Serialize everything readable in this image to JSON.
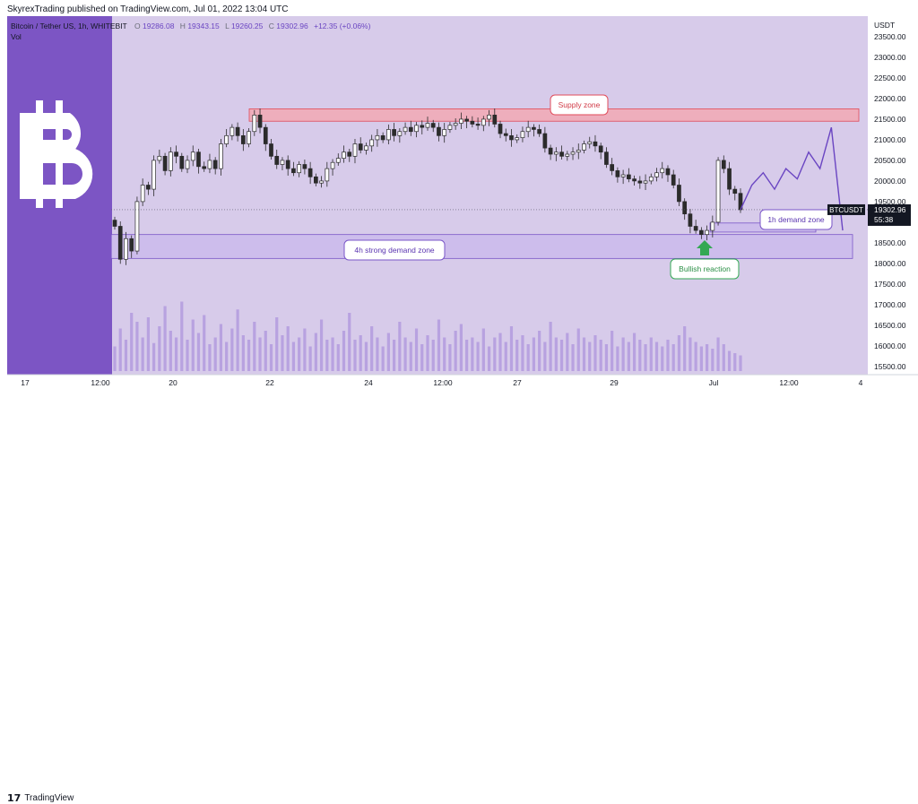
{
  "header": {
    "published_text": "SkyrexTrading published on TradingView.com, Jul 01, 2022 13:04 UTC"
  },
  "legend": {
    "symbol_line": "Bitcoin / Tether US, 1h, WHITEBIT",
    "open_label": "O",
    "open": "19286.08",
    "high_label": "H",
    "high": "19343.15",
    "low_label": "L",
    "low": "19260.25",
    "close_label": "C",
    "close": "19302.96",
    "change": "+12.35 (+0.06%)",
    "volume_label": "Vol"
  },
  "price_axis": {
    "currency": "USDT",
    "last_symbol": "BTCUSDT",
    "last_price": "19302.96",
    "countdown": "55:38"
  },
  "annotations": {
    "supply_zone": "Supply zone",
    "demand_4h": "4h strong demand zone",
    "demand_1h": "1h demand zone",
    "bullish_reaction": "Bullish reaction"
  },
  "footer": {
    "brand": "TradingView",
    "brand_mark": "17"
  },
  "colors": {
    "panel": "#d7cbea",
    "logo_panel": "#7c55c4",
    "candle": "#2b2b2b",
    "volume": "#b8a2e0",
    "supply_fill": "#f2a9b4",
    "supply_border": "#e04b5a",
    "demand_fill": "#c9b8ec",
    "demand_border": "#7a56c8",
    "bullish": "#33a853",
    "forecast": "#6a45c2"
  },
  "chart_data": {
    "type": "candlestick",
    "symbol": "BTCUSDT",
    "interval": "1h",
    "y_range": [
      15300,
      24000
    ],
    "y_ticks": [
      15500,
      16000,
      16500,
      17000,
      17500,
      18000,
      18500,
      19000,
      19500,
      20000,
      20500,
      21000,
      21500,
      22000,
      22500,
      23000,
      23500
    ],
    "x_tick_labels": [
      "17",
      "12:00",
      "20",
      "22",
      "24",
      "12:00",
      "27",
      "29",
      "Jul",
      "12:00",
      "4"
    ],
    "close_series": [
      18900,
      18100,
      18600,
      18300,
      19500,
      19900,
      19800,
      20500,
      20600,
      20250,
      20700,
      20600,
      20300,
      20500,
      20700,
      20350,
      20300,
      20500,
      20300,
      20900,
      21100,
      21300,
      21100,
      20900,
      21200,
      21600,
      21300,
      20900,
      20600,
      20400,
      20500,
      20300,
      20200,
      20400,
      20300,
      20100,
      19950,
      20000,
      20300,
      20450,
      20550,
      20700,
      20600,
      20900,
      20750,
      20850,
      21000,
      21100,
      21000,
      21250,
      21100,
      21200,
      21300,
      21200,
      21350,
      21300,
      21400,
      21300,
      21100,
      21250,
      21350,
      21400,
      21500,
      21450,
      21380,
      21350,
      21500,
      21600,
      21380,
      21150,
      21100,
      21000,
      21050,
      21200,
      21300,
      21250,
      21150,
      20800,
      20650,
      20700,
      20600,
      20650,
      20700,
      20750,
      20900,
      20950,
      20850,
      20700,
      20400,
      20250,
      20100,
      20150,
      20050,
      20000,
      19950,
      20000,
      20100,
      20200,
      20300,
      20150,
      19900,
      19500,
      19200,
      18900,
      18800,
      18700,
      18800,
      19000,
      20500,
      20300,
      19800,
      19700,
      19302.96
    ],
    "volume_series": [
      22,
      38,
      28,
      52,
      44,
      30,
      48,
      25,
      40,
      58,
      36,
      30,
      62,
      28,
      46,
      34,
      50,
      24,
      30,
      42,
      26,
      38,
      55,
      32,
      28,
      44,
      30,
      36,
      24,
      48,
      32,
      40,
      26,
      30,
      38,
      22,
      34,
      46,
      28,
      30,
      24,
      36,
      52,
      28,
      32,
      26,
      40,
      30,
      22,
      34,
      28,
      44,
      30,
      26,
      38,
      24,
      32,
      28,
      46,
      30,
      24,
      36,
      42,
      28,
      30,
      26,
      38,
      22,
      30,
      34,
      26,
      40,
      28,
      32,
      24,
      30,
      36,
      26,
      44,
      30,
      28,
      34,
      24,
      38,
      30,
      26,
      32,
      28,
      24,
      36,
      22,
      30,
      26,
      34,
      28,
      24,
      30,
      26,
      22,
      28,
      24,
      32,
      40,
      30,
      26,
      22,
      24,
      20,
      30,
      24,
      18,
      16,
      14
    ],
    "forecast_path": [
      19302.96,
      19900,
      20200,
      19800,
      20300,
      20050,
      20700,
      20300,
      21300,
      18800
    ],
    "zones": [
      {
        "name": "Supply zone",
        "low": 21450,
        "high": 21750
      },
      {
        "name": "4h strong demand zone",
        "low": 18120,
        "high": 18700
      },
      {
        "name": "1h demand zone",
        "low": 18760,
        "high": 18980
      }
    ],
    "grid": false
  }
}
